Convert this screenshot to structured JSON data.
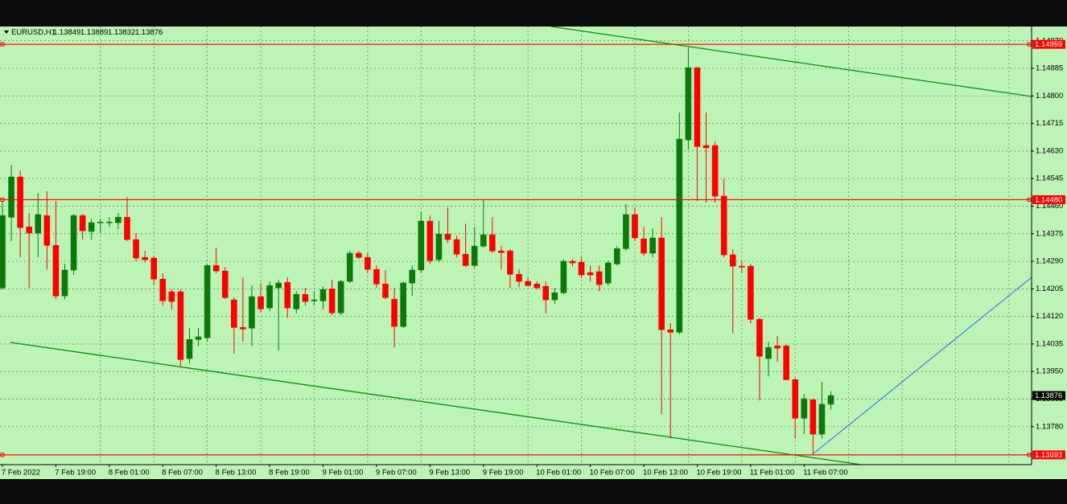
{
  "chart_data": {
    "type": "candlestick",
    "symbol": "EURUSD,H1",
    "categories": [
      "7 Feb 2022",
      null,
      null,
      null,
      null,
      null,
      "7 Feb 19:00",
      null,
      null,
      null,
      null,
      null,
      "8 Feb 01:00",
      null,
      null,
      null,
      null,
      null,
      "8 Feb 07:00",
      null,
      null,
      null,
      null,
      null,
      "8 Feb 13:00",
      null,
      null,
      null,
      null,
      null,
      "8 Feb 19:00",
      null,
      null,
      null,
      null,
      null,
      "9 Feb 01:00",
      null,
      null,
      null,
      null,
      null,
      "9 Feb 07:00",
      null,
      null,
      null,
      null,
      null,
      "9 Feb 13:00",
      null,
      null,
      null,
      null,
      null,
      "9 Feb 19:00",
      null,
      null,
      null,
      null,
      null,
      "10 Feb 01:00",
      null,
      null,
      null,
      null,
      null,
      "10 Feb 07:00",
      null,
      null,
      null,
      null,
      null,
      "10 Feb 13:00",
      null,
      null,
      null,
      null,
      null,
      "10 Feb 19:00",
      null,
      null,
      null,
      null,
      null,
      "11 Feb 01:00",
      null,
      null,
      null,
      null,
      null,
      "11 Feb 07:00",
      null,
      null,
      null
    ],
    "open": [
      1.14208,
      1.14426,
      1.1455,
      1.14396,
      1.14377,
      1.14431,
      1.14339,
      1.14183,
      1.14263,
      1.14431,
      1.14382,
      1.14409,
      1.14411,
      1.14409,
      1.14426,
      1.14357,
      1.14302,
      1.143,
      1.14235,
      1.14196,
      1.14196,
      1.1399,
      1.14049,
      1.14054,
      1.14277,
      1.1426,
      1.14171,
      1.14086,
      1.14084,
      1.14181,
      1.14146,
      1.14208,
      1.14225,
      1.14143,
      1.14188,
      1.14168,
      1.14168,
      1.14205,
      1.14131,
      1.14228,
      1.14315,
      1.14302,
      1.14265,
      1.1422,
      1.14173,
      1.14089,
      1.14223,
      1.14263,
      1.14414,
      1.14295,
      1.14374,
      1.14357,
      1.14312,
      1.14277,
      1.14337,
      1.14372,
      1.14322,
      1.14322,
      1.1425,
      1.14228,
      1.1422,
      1.14213,
      1.14171,
      1.14193,
      1.1429,
      1.14287,
      1.14255,
      1.14258,
      1.14223,
      1.14282,
      1.14329,
      1.14434,
      1.14359,
      1.14315,
      1.14362,
      1.14079,
      1.14071,
      1.14664,
      1.14887,
      1.14647,
      1.14647,
      1.14491,
      1.1431,
      1.14275,
      1.14275,
      1.14111,
      1.1399,
      1.14029,
      1.14029,
      1.13925,
      1.13806,
      1.13863,
      1.13757,
      1.13849
    ],
    "high": [
      1.14476,
      1.14587,
      1.1457,
      1.14439,
      1.14501,
      1.14506,
      1.14476,
      1.14282,
      1.14436,
      1.14436,
      1.14421,
      1.14421,
      1.14426,
      1.14439,
      1.14488,
      1.14377,
      1.14322,
      1.14307,
      1.14253,
      1.14203,
      1.14203,
      1.14084,
      1.14084,
      1.14282,
      1.14332,
      1.14272,
      1.14178,
      1.1424,
      1.14215,
      1.14223,
      1.14228,
      1.14233,
      1.1424,
      1.14198,
      1.14208,
      1.14198,
      1.14213,
      1.14233,
      1.14233,
      1.14322,
      1.14322,
      1.14315,
      1.14277,
      1.14263,
      1.14208,
      1.14228,
      1.14277,
      1.14441,
      1.14431,
      1.14414,
      1.14456,
      1.14369,
      1.14406,
      1.14396,
      1.14481,
      1.14426,
      1.14337,
      1.14327,
      1.14265,
      1.1424,
      1.14228,
      1.14228,
      1.14208,
      1.14297,
      1.14297,
      1.14302,
      1.14277,
      1.14277,
      1.14292,
      1.14337,
      1.14466,
      1.14456,
      1.14396,
      1.14391,
      1.14426,
      1.14099,
      1.14749,
      1.14947,
      1.1489,
      1.14749,
      1.14659,
      1.14545,
      1.14327,
      1.1429,
      1.14282,
      1.14116,
      1.14042,
      1.14059,
      1.14034,
      1.1393,
      1.13881,
      1.13866,
      1.13918,
      1.13889
    ],
    "low": [
      1.14203,
      1.14352,
      1.14302,
      1.14208,
      1.14302,
      1.14265,
      1.14173,
      1.14173,
      1.14248,
      1.14357,
      1.14357,
      1.14377,
      1.14396,
      1.14389,
      1.14352,
      1.1429,
      1.14287,
      1.14218,
      1.14153,
      1.14141,
      1.13967,
      1.13975,
      1.14029,
      1.14042,
      1.14253,
      1.14173,
      1.14005,
      1.14042,
      1.14029,
      1.14134,
      1.14136,
      1.14014,
      1.14116,
      1.14129,
      1.14153,
      1.14153,
      1.14141,
      1.14124,
      1.14124,
      1.14223,
      1.14297,
      1.14253,
      1.14208,
      1.14173,
      1.14024,
      1.14084,
      1.14183,
      1.14253,
      1.14282,
      1.14287,
      1.14347,
      1.14302,
      1.14272,
      1.1427,
      1.14332,
      1.14315,
      1.14265,
      1.14208,
      1.1421,
      1.14213,
      1.14203,
      1.14129,
      1.14158,
      1.14188,
      1.14275,
      1.14238,
      1.14228,
      1.14198,
      1.14215,
      1.14277,
      1.14322,
      1.14352,
      1.14307,
      1.14302,
      1.13819,
      1.13744,
      1.14064,
      1.14635,
      1.14476,
      1.14471,
      1.14471,
      1.14302,
      1.14067,
      1.14253,
      1.14099,
      1.13861,
      1.13935,
      1.1398,
      1.13923,
      1.13744,
      1.13757,
      1.13695,
      1.13744,
      1.13832
    ],
    "close": [
      1.14431,
      1.1455,
      1.14394,
      1.14377,
      1.14434,
      1.14339,
      1.14183,
      1.14263,
      1.14431,
      1.14384,
      1.14409,
      1.14411,
      1.14411,
      1.14426,
      1.14357,
      1.143,
      1.14295,
      1.14235,
      1.14168,
      1.14166,
      1.13987,
      1.14049,
      1.14057,
      1.14277,
      1.1426,
      1.14178,
      1.14086,
      1.14081,
      1.14181,
      1.14143,
      1.14215,
      1.14223,
      1.14146,
      1.14188,
      1.14166,
      1.14171,
      1.14203,
      1.14131,
      1.14228,
      1.14315,
      1.14302,
      1.14265,
      1.1422,
      1.14178,
      1.14089,
      1.14223,
      1.14263,
      1.14414,
      1.14292,
      1.14374,
      1.14357,
      1.14312,
      1.14277,
      1.14337,
      1.14372,
      1.14322,
      1.14317,
      1.1425,
      1.14228,
      1.14215,
      1.14208,
      1.14171,
      1.14193,
      1.1429,
      1.14285,
      1.14248,
      1.14248,
      1.14218,
      1.14285,
      1.14329,
      1.14434,
      1.14362,
      1.14315,
      1.14362,
      1.14079,
      1.14071,
      1.14667,
      1.14887,
      1.14644,
      1.1464,
      1.14491,
      1.1431,
      1.14275,
      1.14272,
      1.14111,
      1.13997,
      1.14024,
      1.14022,
      1.13925,
      1.13806,
      1.13866,
      1.13757,
      1.13849,
      1.13876
    ],
    "up_color": "#0b7a0b",
    "down_color": "#ff0000",
    "background": "#bcf4b5",
    "ylim": [
      1.13663,
      1.15014
    ],
    "yticks": [
      {
        "value": 1.1497,
        "label": "1.14970"
      },
      1.14885,
      {
        "value": 1.148,
        "label": "1.14800"
      },
      1.14715,
      {
        "value": 1.1463,
        "label": "1.14630"
      },
      1.14545,
      {
        "value": 1.1446,
        "label": "1.14460"
      },
      1.14375,
      {
        "value": 1.1429,
        "label": "1.14290"
      },
      1.14205,
      {
        "value": 1.1412,
        "label": "1.14120"
      },
      1.14035,
      {
        "value": 1.1395,
        "label": "1.13950"
      },
      1.13865,
      {
        "value": 1.1378,
        "label": "1.13780"
      }
    ],
    "grid": true,
    "levels": [
      1.14959,
      {
        "value": 1.1448,
        "label": "1.14480"
      },
      1.13693
    ],
    "level_color": "#ff0000"
  }
}
